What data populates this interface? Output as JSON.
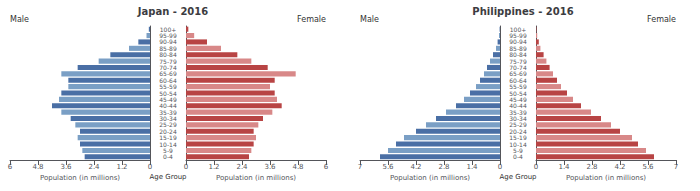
{
  "chart_data": [
    {
      "type": "bar",
      "orientation": "horizontal",
      "title": "Japan - 2016",
      "xlabel": "Population (in millions)",
      "ylabel": "Age Group",
      "grid": false,
      "categories": [
        "0-4",
        "5-9",
        "10-14",
        "15-19",
        "20-24",
        "25-29",
        "30-34",
        "35-39",
        "40-44",
        "45-49",
        "50-54",
        "55-59",
        "60-64",
        "65-69",
        "70-74",
        "75-79",
        "80-84",
        "85-89",
        "90-94",
        "95-99",
        "100+"
      ],
      "xlim": [
        0,
        6.0
      ],
      "xticks": [
        0,
        1.2,
        2.4,
        3.6,
        4.8,
        6
      ],
      "series": [
        {
          "name": "Male",
          "values": [
            2.8,
            2.9,
            3.0,
            3.1,
            3.0,
            3.2,
            3.4,
            3.8,
            4.2,
            3.9,
            3.8,
            3.5,
            3.5,
            3.8,
            3.1,
            2.2,
            1.7,
            0.9,
            0.5,
            0.15,
            0.05
          ],
          "colors": [
            "#4a6fa5",
            "#7a9fc5",
            "#4a6fa5",
            "#7a9fc5",
            "#4a6fa5",
            "#7a9fc5",
            "#4a6fa5",
            "#7a9fc5",
            "#4a6fa5",
            "#7a9fc5",
            "#4a6fa5",
            "#7a9fc5",
            "#4a6fa5",
            "#7a9fc5",
            "#4a6fa5",
            "#7a9fc5",
            "#4a6fa5",
            "#7a9fc5",
            "#4a6fa5",
            "#7a9fc5",
            "#4a6fa5"
          ]
        },
        {
          "name": "Female",
          "values": [
            2.7,
            2.8,
            2.9,
            3.0,
            2.9,
            3.1,
            3.3,
            3.7,
            4.1,
            3.9,
            3.8,
            3.6,
            3.8,
            4.7,
            3.5,
            2.8,
            2.2,
            1.5,
            0.9,
            0.35,
            0.1
          ],
          "colors": [
            "#b84444",
            "#d88888",
            "#b84444",
            "#d88888",
            "#b84444",
            "#d88888",
            "#b84444",
            "#d88888",
            "#b84444",
            "#d88888",
            "#b84444",
            "#d88888",
            "#b84444",
            "#d88888",
            "#b84444",
            "#d88888",
            "#b84444",
            "#d88888",
            "#b84444",
            "#d88888",
            "#b84444"
          ]
        }
      ]
    },
    {
      "type": "bar",
      "orientation": "horizontal",
      "title": "Philippines - 2016",
      "xlabel": "Population (in millions)",
      "ylabel": "Age Group",
      "grid": false,
      "categories": [
        "0-4",
        "5-9",
        "10-14",
        "15-19",
        "20-24",
        "25-29",
        "30-34",
        "35-39",
        "40-44",
        "45-49",
        "50-54",
        "55-59",
        "60-64",
        "65-69",
        "70-74",
        "75-79",
        "80-84",
        "85-89",
        "90-94",
        "95-99",
        "100+"
      ],
      "xlim": [
        0,
        7.0
      ],
      "xticks": [
        0,
        1.4,
        2.8,
        4.2,
        5.6,
        7
      ],
      "series": [
        {
          "name": "Male",
          "values": [
            6.0,
            5.6,
            5.2,
            4.8,
            4.2,
            3.7,
            3.2,
            2.7,
            2.2,
            1.8,
            1.5,
            1.2,
            1.0,
            0.8,
            0.65,
            0.5,
            0.35,
            0.2,
            0.12,
            0.05,
            0.02
          ],
          "colors": [
            "#4a6fa5",
            "#7a9fc5",
            "#4a6fa5",
            "#7a9fc5",
            "#4a6fa5",
            "#7a9fc5",
            "#4a6fa5",
            "#7a9fc5",
            "#4a6fa5",
            "#7a9fc5",
            "#4a6fa5",
            "#7a9fc5",
            "#4a6fa5",
            "#7a9fc5",
            "#4a6fa5",
            "#7a9fc5",
            "#4a6fa5",
            "#7a9fc5",
            "#4a6fa5",
            "#7a9fc5",
            "#4a6fa5"
          ]
        },
        {
          "name": "Female",
          "values": [
            5.9,
            5.5,
            5.1,
            4.8,
            4.2,
            3.75,
            3.25,
            2.75,
            2.25,
            1.85,
            1.55,
            1.25,
            1.05,
            0.85,
            0.68,
            0.52,
            0.38,
            0.22,
            0.14,
            0.06,
            0.02
          ],
          "colors": [
            "#b84444",
            "#d88888",
            "#b84444",
            "#d88888",
            "#b84444",
            "#d88888",
            "#b84444",
            "#d88888",
            "#b84444",
            "#d88888",
            "#b84444",
            "#d88888",
            "#b84444",
            "#d88888",
            "#b84444",
            "#d88888",
            "#b84444",
            "#d88888",
            "#b84444",
            "#d88888",
            "#b84444"
          ]
        }
      ]
    }
  ]
}
